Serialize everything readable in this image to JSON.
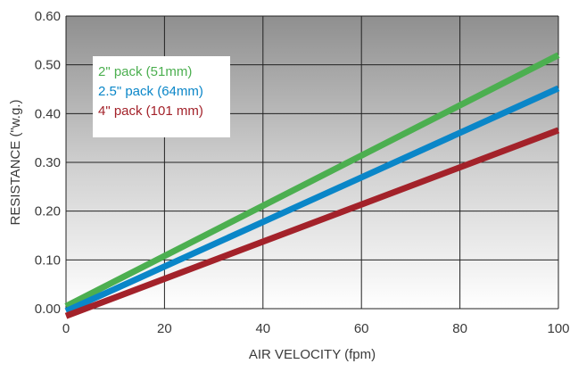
{
  "chart_data": {
    "type": "line",
    "title": "",
    "xlabel": "AIR VELOCITY (fpm)",
    "ylabel": "RESISTANCE (\"w.g.)",
    "xlim": [
      0,
      100
    ],
    "ylim": [
      0,
      0.6
    ],
    "x_ticks": [
      "0",
      "20",
      "40",
      "60",
      "80",
      "100"
    ],
    "y_ticks": [
      "0.00",
      "0.10",
      "0.20",
      "0.30",
      "0.40",
      "0.50",
      "0.60"
    ],
    "grid": true,
    "legend_position": "top-left",
    "x": [
      0,
      100
    ],
    "series": [
      {
        "name": "2\" pack (51mm)",
        "color": "#4caf50",
        "values": [
          0.005,
          0.52
        ]
      },
      {
        "name": "2.5\" pack (64mm)",
        "color": "#0a86c8",
        "values": [
          -0.005,
          0.452
        ]
      },
      {
        "name": "4\" pack (101 mm)",
        "color": "#a3222a",
        "values": [
          -0.015,
          0.366
        ]
      }
    ]
  }
}
